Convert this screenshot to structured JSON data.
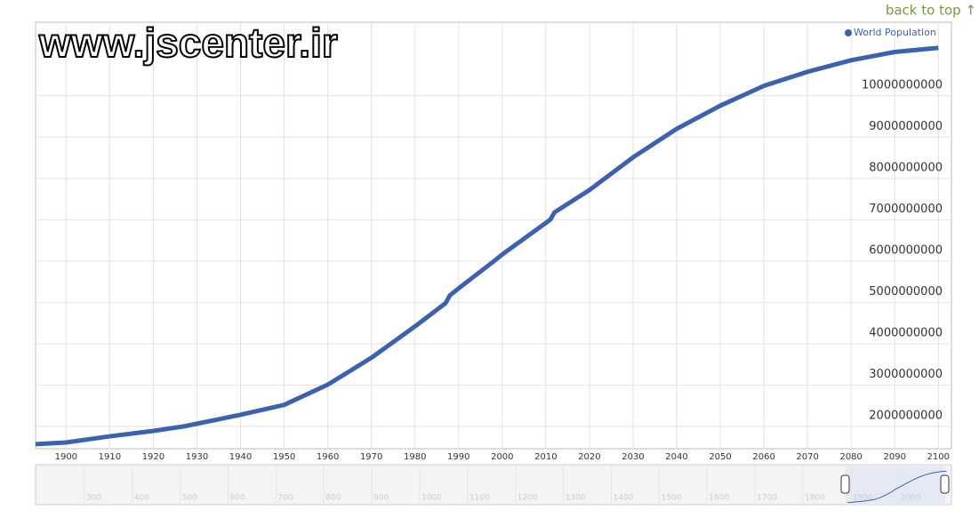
{
  "chart_data": {
    "type": "line",
    "watermark": "www.jscenter.ir",
    "back_link": "back to top ↑",
    "x": [
      1893,
      1900,
      1910,
      1920,
      1927,
      1940,
      1950,
      1960,
      1970,
      1980,
      1987,
      1988,
      1990,
      1998,
      2000,
      2011,
      2012,
      2020,
      2030,
      2040,
      2050,
      2060,
      2070,
      2080,
      2090,
      2100
    ],
    "series": [
      {
        "name": "World Population",
        "color": "#3d62ad",
        "values": [
          1570000000,
          1610000000,
          1760000000,
          1890000000,
          2000000000,
          2280000000,
          2520000000,
          3010000000,
          3660000000,
          4420000000,
          4980000000,
          5170000000,
          5340000000,
          5990000000,
          6160000000,
          7000000000,
          7180000000,
          7720000000,
          8510000000,
          9200000000,
          9760000000,
          10240000000,
          10580000000,
          10860000000,
          11060000000,
          11160000000
        ]
      }
    ],
    "xlim": [
      1893,
      2103
    ],
    "xticks": [
      1900,
      1910,
      1920,
      1930,
      1940,
      1950,
      1960,
      1970,
      1980,
      1990,
      2000,
      2010,
      2020,
      2030,
      2040,
      2050,
      2060,
      2070,
      2080,
      2090,
      2100
    ],
    "ylim": [
      1460000000,
      11780000000
    ],
    "yticks": [
      2000000000,
      3000000000,
      4000000000,
      5000000000,
      6000000000,
      7000000000,
      8000000000,
      9000000000,
      10000000000
    ],
    "grid": true,
    "legend": "top-right",
    "navigator": {
      "xlim": [
        198,
        2110
      ],
      "xticks": [
        300,
        400,
        500,
        600,
        700,
        800,
        900,
        1000,
        1100,
        1200,
        1300,
        1400,
        1500,
        1600,
        1700,
        1800,
        1900,
        2000
      ]
    }
  }
}
